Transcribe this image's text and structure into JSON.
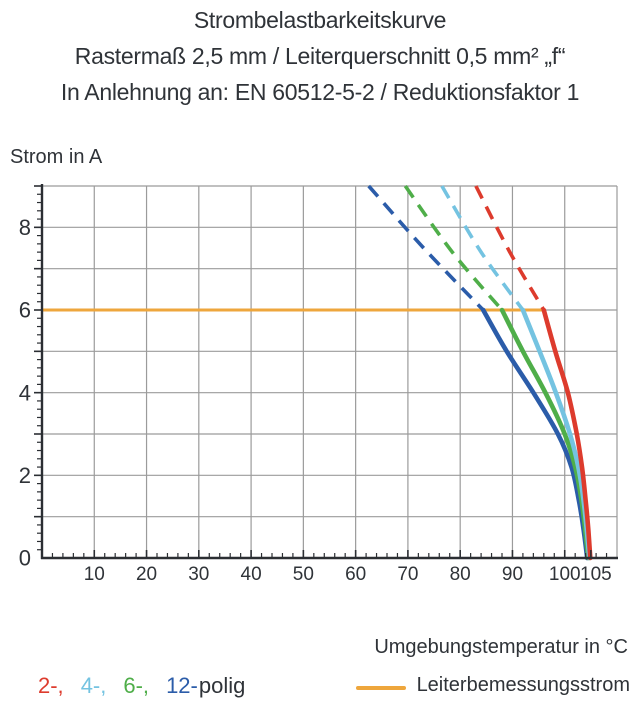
{
  "title": {
    "line1": "Strombelastbarkeitskurve",
    "line2": "Rastermaß 2,5 mm / Leiterquerschnitt 0,5 mm² „f“",
    "line3": "In Anlehnung an: EN 60512-5-2 / Reduktionsfaktor 1"
  },
  "colors": {
    "red": "#dd3b2d",
    "cyan": "#74c3e1",
    "green": "#4fae49",
    "blue": "#2b5ca9",
    "orange": "#eea63c",
    "grid": "#9b9b9b",
    "axis": "#2b2e33",
    "text": "#2f3338"
  },
  "chart_data": {
    "type": "line",
    "title": "Strombelastbarkeitskurve",
    "subtitle": "Rastermaß 2,5 mm / Leiterquerschnitt 0,5 mm² „f“ — In Anlehnung an: EN 60512-5-2 / Reduktionsfaktor 1",
    "xlabel": "Umgebungstemperatur in °C",
    "ylabel": "Strom in A",
    "xlim": [
      0,
      110
    ],
    "ylim": [
      0,
      9
    ],
    "grid": true,
    "layout": {
      "x_grid_step": 10,
      "y_grid_step": 1,
      "x_minor_step": 2,
      "y_minor_step": 0.2
    },
    "x_ticks": {
      "values": [
        10,
        20,
        30,
        40,
        50,
        60,
        70,
        80,
        90,
        100,
        105
      ],
      "labels": [
        "10",
        "20",
        "30",
        "40",
        "50",
        "60",
        "70",
        "80",
        "90",
        "100",
        "105"
      ]
    },
    "y_ticks": {
      "values": [
        0,
        2,
        4,
        6,
        8
      ],
      "labels": [
        "0",
        "2",
        "4",
        "6",
        "8"
      ]
    },
    "series": [
      {
        "name": "2-polig",
        "color_key": "red",
        "dashed_points": [
          [
            83,
            9
          ],
          [
            89.5,
            7.4
          ],
          [
            96,
            6
          ]
        ],
        "solid_points": [
          [
            96,
            6
          ],
          [
            98.2,
            5
          ],
          [
            100.6,
            4
          ],
          [
            102.3,
            3
          ],
          [
            103.3,
            2.2
          ],
          [
            104,
            1.4
          ],
          [
            104.5,
            0.7
          ],
          [
            104.9,
            0
          ]
        ]
      },
      {
        "name": "4-polig",
        "color_key": "cyan",
        "dashed_points": [
          [
            76.5,
            9
          ],
          [
            84,
            7.4
          ],
          [
            92,
            6
          ]
        ],
        "solid_points": [
          [
            92,
            6
          ],
          [
            95.2,
            5
          ],
          [
            98.3,
            4
          ],
          [
            101,
            3
          ],
          [
            102.6,
            2.2
          ],
          [
            103.6,
            1.4
          ],
          [
            104.2,
            0.7
          ],
          [
            104.7,
            0
          ]
        ]
      },
      {
        "name": "6-polig",
        "color_key": "green",
        "dashed_points": [
          [
            69.5,
            9
          ],
          [
            78.5,
            7.4
          ],
          [
            88,
            6
          ]
        ],
        "solid_points": [
          [
            88,
            6
          ],
          [
            92,
            5
          ],
          [
            96.3,
            4
          ],
          [
            100,
            3
          ],
          [
            102,
            2.2
          ],
          [
            103.2,
            1.4
          ],
          [
            103.9,
            0.7
          ],
          [
            104.5,
            0
          ]
        ]
      },
      {
        "name": "12-polig",
        "color_key": "blue",
        "dashed_points": [
          [
            62.5,
            9
          ],
          [
            73,
            7.5
          ],
          [
            84.4,
            6
          ]
        ],
        "solid_points": [
          [
            84.4,
            6
          ],
          [
            88.9,
            5
          ],
          [
            94,
            4
          ],
          [
            98.7,
            3
          ],
          [
            101.3,
            2.2
          ],
          [
            102.7,
            1.4
          ],
          [
            103.6,
            0.7
          ],
          [
            104.3,
            0
          ]
        ]
      }
    ],
    "reference_line": {
      "name": "Leiterbemessungsstrom",
      "color_key": "orange",
      "y": 6,
      "x_start": 0,
      "x_end": 96
    },
    "legend_position": "bottom"
  },
  "axis_titles": {
    "y": "Strom in A",
    "x": "Umgebungstemperatur in °C"
  },
  "legend": {
    "items": [
      {
        "label": "2-,",
        "color_key": "red"
      },
      {
        "label": "4-,",
        "color_key": "cyan"
      },
      {
        "label": "6-,",
        "color_key": "green"
      },
      {
        "label": "12-",
        "color_key": "blue"
      }
    ],
    "suffix": "polig",
    "reference_label": "Leiterbemessungsstrom"
  }
}
